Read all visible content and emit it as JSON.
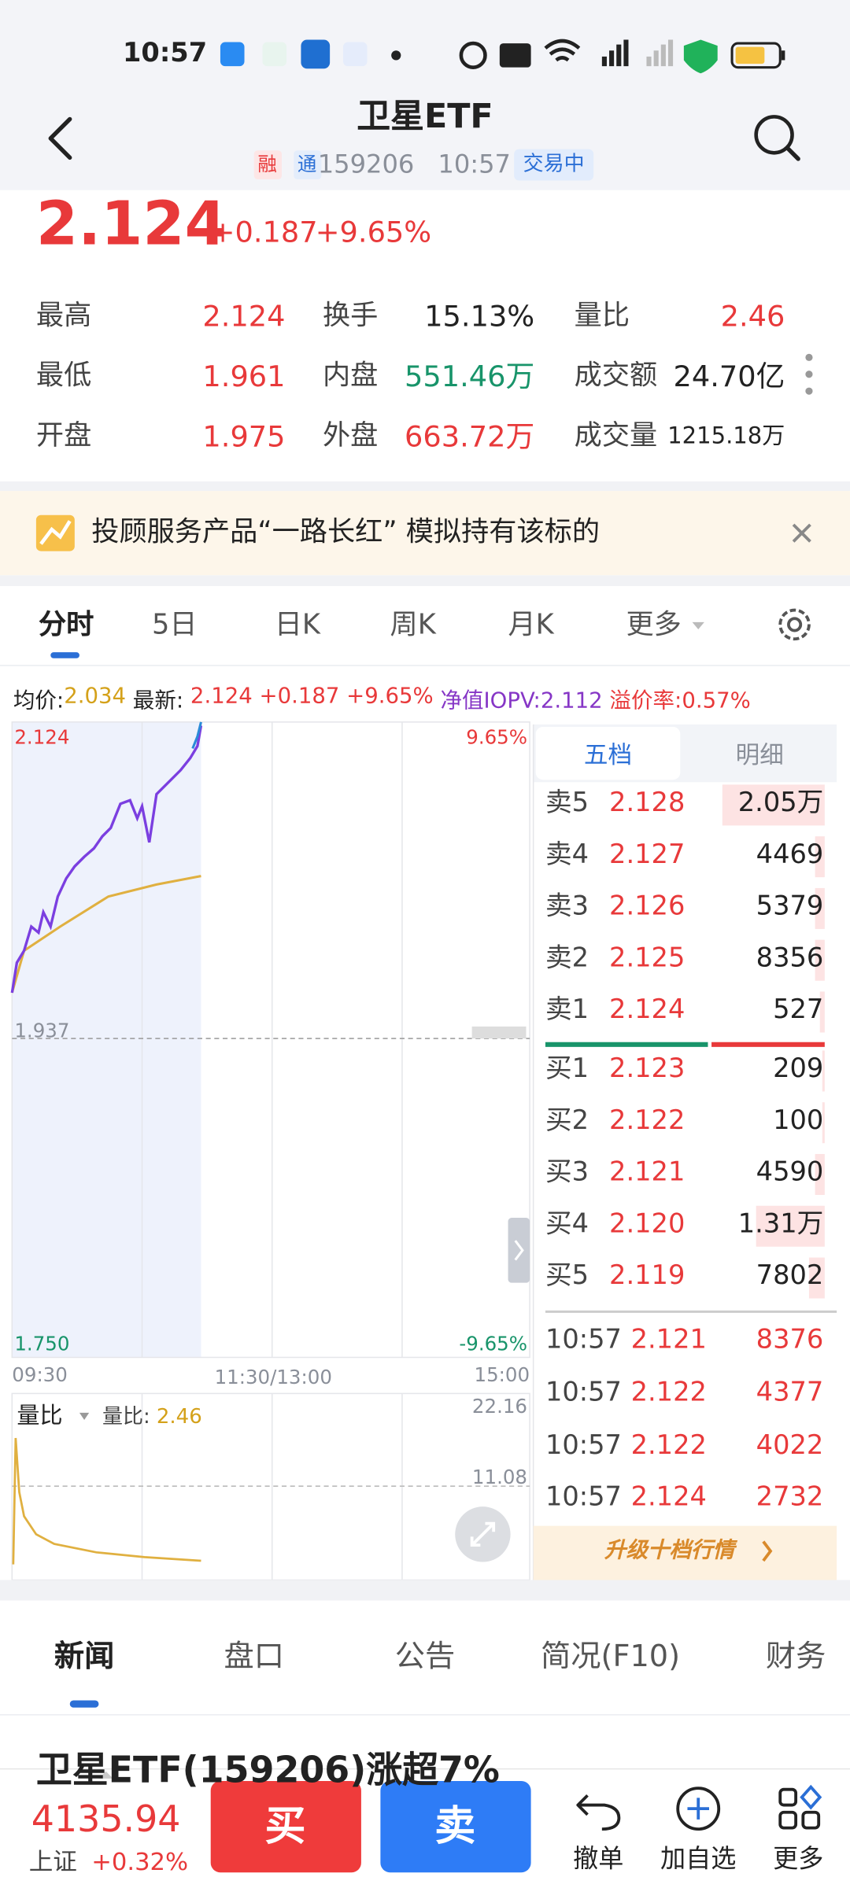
{
  "status_bar": {
    "time": "10:57"
  },
  "header": {
    "title": "卫星ETF",
    "tags": [
      "融",
      "通"
    ],
    "code": "159206",
    "time": "10:57",
    "status": "交易中"
  },
  "quote": {
    "price": "2.124",
    "change": "+0.187",
    "change_pct": "+9.65%"
  },
  "stats": [
    [
      {
        "label": "最高",
        "value": "2.124"
      },
      {
        "label": "换手",
        "value": "15.13%"
      },
      {
        "label": "量比",
        "value": "2.46"
      }
    ],
    [
      {
        "label": "最低",
        "value": "1.961"
      },
      {
        "label": "内盘",
        "value": "551.46万"
      },
      {
        "label": "成交额",
        "value": "24.70亿"
      }
    ],
    [
      {
        "label": "开盘",
        "value": "1.975"
      },
      {
        "label": "外盘",
        "value": "663.72万"
      },
      {
        "label": "成交量",
        "value": "1215.18万"
      }
    ]
  ],
  "banner": {
    "text": "投顾服务产品“一路长红” 模拟持有该标的"
  },
  "chart_tabs": [
    "分时",
    "5日",
    "日K",
    "周K",
    "月K",
    "更多"
  ],
  "info_line": {
    "avg_label": "均价:",
    "avg": "2.034",
    "latest_label": "最新:",
    "latest": "2.124 +0.187 +9.65%",
    "iopv": "净值IOPV:2.112",
    "premium": "溢价率:0.57%"
  },
  "intraday": {
    "high": "2.124",
    "high_pct": "9.65%",
    "prev_close": "1.937",
    "low": "1.750",
    "low_pct": "-9.65%",
    "times": [
      "09:30",
      "11:30/13:00",
      "15:00"
    ]
  },
  "volume_ratio": {
    "selector": "量比",
    "label": "量比:",
    "value": "2.46",
    "max": "22.16",
    "mid": "11.08"
  },
  "order_book": {
    "tabs": [
      "五档",
      "明细"
    ],
    "asks": [
      {
        "label": "卖5",
        "price": "2.128",
        "volume": "2.05万"
      },
      {
        "label": "卖4",
        "price": "2.127",
        "volume": "4469"
      },
      {
        "label": "卖3",
        "price": "2.126",
        "volume": "5379"
      },
      {
        "label": "卖2",
        "price": "2.125",
        "volume": "8356"
      },
      {
        "label": "卖1",
        "price": "2.124",
        "volume": "527"
      }
    ],
    "bids": [
      {
        "label": "买1",
        "price": "2.123",
        "volume": "209"
      },
      {
        "label": "买2",
        "price": "2.122",
        "volume": "100"
      },
      {
        "label": "买3",
        "price": "2.121",
        "volume": "4590"
      },
      {
        "label": "买4",
        "price": "2.120",
        "volume": "1.31万"
      },
      {
        "label": "买5",
        "price": "2.119",
        "volume": "7802"
      }
    ],
    "trades": [
      {
        "time": "10:57",
        "price": "2.121",
        "volume": "8376"
      },
      {
        "time": "10:57",
        "price": "2.122",
        "volume": "4377"
      },
      {
        "time": "10:57",
        "price": "2.122",
        "volume": "4022"
      },
      {
        "time": "10:57",
        "price": "2.124",
        "volume": "2732"
      }
    ],
    "upgrade": "升级十档行情"
  },
  "bottom_tabs": [
    "新闻",
    "盘口",
    "公告",
    "简况(F10)",
    "财务"
  ],
  "news_headline": "卫星ETF(159206)涨超7%",
  "footer": {
    "index_value": "4135.94",
    "index_name": "上证",
    "index_change": "+0.32%",
    "buy": "买",
    "sell": "卖",
    "actions": [
      "撤单",
      "加自选",
      "更多"
    ]
  }
}
